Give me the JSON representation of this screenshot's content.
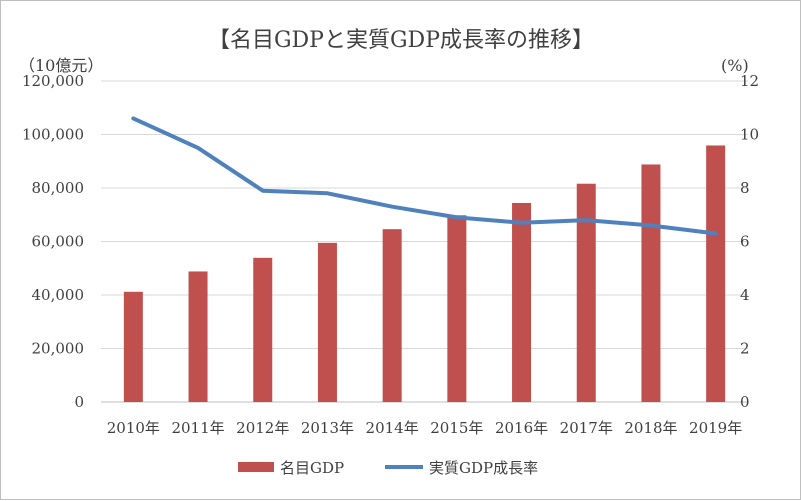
{
  "chart_data": {
    "type": "bar+line",
    "title": "【名目GDPと実質GDP成長率の推移】",
    "left_unit_label": "（10億元）",
    "right_unit_label": "(%)",
    "categories": [
      "2010年",
      "2011年",
      "2012年",
      "2013年",
      "2014年",
      "2015年",
      "2016年",
      "2017年",
      "2018年",
      "2019年"
    ],
    "series": [
      {
        "name": "名目GDP",
        "type": "bar",
        "axis": "left",
        "color": "#c0504d",
        "values": [
          41200,
          48800,
          53900,
          59500,
          64600,
          69800,
          74400,
          81600,
          88800,
          95900
        ]
      },
      {
        "name": "実質GDP成長率",
        "type": "line",
        "axis": "right",
        "color": "#4f81bd",
        "values": [
          10.6,
          9.5,
          7.9,
          7.8,
          7.3,
          6.9,
          6.7,
          6.8,
          6.6,
          6.3
        ]
      }
    ],
    "left_axis": {
      "min": 0,
      "max": 120000,
      "ticks": [
        "0",
        "20,000",
        "40,000",
        "60,000",
        "80,000",
        "100,000",
        "120,000"
      ]
    },
    "right_axis": {
      "min": 0,
      "max": 12,
      "ticks": [
        "0",
        "2",
        "4",
        "6",
        "8",
        "10",
        "12"
      ]
    },
    "grid": true,
    "legend_position": "bottom",
    "gridline_color": "#d9d9d9"
  }
}
